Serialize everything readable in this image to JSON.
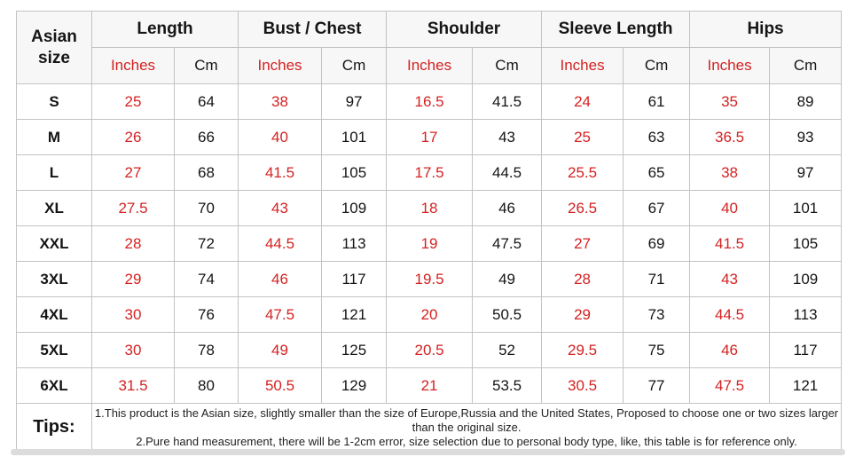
{
  "table": {
    "corner_header": "Asian size",
    "groups": [
      {
        "label": "Length"
      },
      {
        "label": "Bust / Chest"
      },
      {
        "label": "Shoulder"
      },
      {
        "label": "Sleeve Length"
      },
      {
        "label": "Hips"
      }
    ],
    "unit_headers": {
      "inches": "Inches",
      "cm": "Cm"
    },
    "rows": [
      {
        "size": "S",
        "values": [
          "25",
          "64",
          "38",
          "97",
          "16.5",
          "41.5",
          "24",
          "61",
          "35",
          "89"
        ]
      },
      {
        "size": "M",
        "values": [
          "26",
          "66",
          "40",
          "101",
          "17",
          "43",
          "25",
          "63",
          "36.5",
          "93"
        ]
      },
      {
        "size": "L",
        "values": [
          "27",
          "68",
          "41.5",
          "105",
          "17.5",
          "44.5",
          "25.5",
          "65",
          "38",
          "97"
        ]
      },
      {
        "size": "XL",
        "values": [
          "27.5",
          "70",
          "43",
          "109",
          "18",
          "46",
          "26.5",
          "67",
          "40",
          "101"
        ]
      },
      {
        "size": "XXL",
        "values": [
          "28",
          "72",
          "44.5",
          "113",
          "19",
          "47.5",
          "27",
          "69",
          "41.5",
          "105"
        ]
      },
      {
        "size": "3XL",
        "values": [
          "29",
          "74",
          "46",
          "117",
          "19.5",
          "49",
          "28",
          "71",
          "43",
          "109"
        ]
      },
      {
        "size": "4XL",
        "values": [
          "30",
          "76",
          "47.5",
          "121",
          "20",
          "50.5",
          "29",
          "73",
          "44.5",
          "113"
        ]
      },
      {
        "size": "5XL",
        "values": [
          "30",
          "78",
          "49",
          "125",
          "20.5",
          "52",
          "29.5",
          "75",
          "46",
          "117"
        ]
      },
      {
        "size": "6XL",
        "values": [
          "31.5",
          "80",
          "50.5",
          "129",
          "21",
          "53.5",
          "30.5",
          "77",
          "47.5",
          "121"
        ]
      }
    ],
    "tips": {
      "label": "Tips:",
      "lines": [
        "1.This product is the Asian size, slightly smaller than the size of Europe,Russia and the United States, Proposed to choose one or two sizes larger than the original size.",
        "2.Pure hand measurement, there will be 1-2cm error, size selection due to personal body type, like, this table is for reference only."
      ]
    }
  },
  "colors": {
    "accent_red": "#d42222",
    "text_black": "#141414",
    "grid_line": "#c3c3c3",
    "header_bg": "#f7f7f7",
    "scrollbar_gray": "#dcdcdc"
  }
}
